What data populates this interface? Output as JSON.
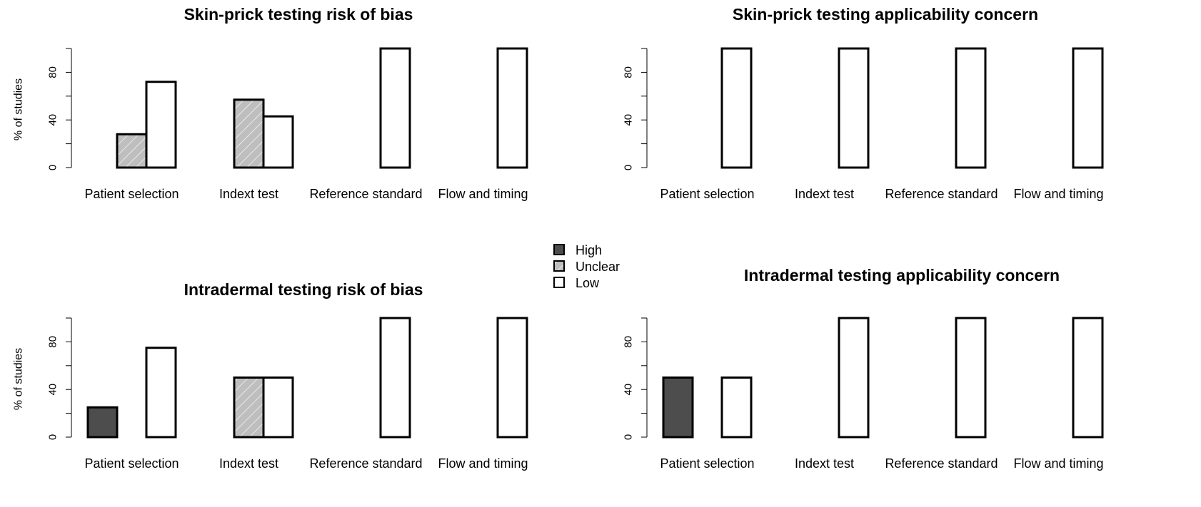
{
  "legend": {
    "entries": [
      {
        "key": "high",
        "label": "High",
        "color": "#4d4d4d",
        "pattern": "solid"
      },
      {
        "key": "unclear",
        "label": "Unclear",
        "color": "#bebebe",
        "pattern": "hatched"
      },
      {
        "key": "low",
        "label": "Low",
        "color": "#ffffff",
        "pattern": "empty"
      }
    ]
  },
  "chart_data": [
    {
      "type": "bar",
      "title": "Skin-prick testing risk of bias",
      "ylabel": "% of studies",
      "ylim": [
        0,
        100
      ],
      "yticks": [
        "0",
        "40",
        "80"
      ],
      "categories": [
        "Patient selection",
        "Indext test",
        "Reference standard",
        "Flow and timing"
      ],
      "series": [
        {
          "name": "High",
          "values": [
            0,
            0,
            0,
            0
          ]
        },
        {
          "name": "Unclear",
          "values": [
            28,
            57,
            0,
            0
          ]
        },
        {
          "name": "Low",
          "values": [
            72,
            43,
            100,
            100
          ]
        }
      ]
    },
    {
      "type": "bar",
      "title": "Skin-prick testing applicability concern",
      "ylabel": "",
      "ylim": [
        0,
        100
      ],
      "yticks": [
        "0",
        "40",
        "80"
      ],
      "categories": [
        "Patient selection",
        "Indext test",
        "Reference standard",
        "Flow and timing"
      ],
      "series": [
        {
          "name": "High",
          "values": [
            0,
            0,
            0,
            0
          ]
        },
        {
          "name": "Unclear",
          "values": [
            0,
            0,
            0,
            0
          ]
        },
        {
          "name": "Low",
          "values": [
            100,
            100,
            100,
            100
          ]
        }
      ]
    },
    {
      "type": "bar",
      "title": "Intradermal testing risk of bias",
      "ylabel": "% of studies",
      "ylim": [
        0,
        100
      ],
      "yticks": [
        "0",
        "40",
        "80"
      ],
      "categories": [
        "Patient selection",
        "Indext test",
        "Reference standard",
        "Flow and timing"
      ],
      "series": [
        {
          "name": "High",
          "values": [
            25,
            0,
            0,
            0
          ]
        },
        {
          "name": "Unclear",
          "values": [
            0,
            50,
            0,
            0
          ]
        },
        {
          "name": "Low",
          "values": [
            75,
            50,
            100,
            100
          ]
        }
      ]
    },
    {
      "type": "bar",
      "title": "Intradermal testing applicability concern",
      "ylabel": "",
      "ylim": [
        0,
        100
      ],
      "yticks": [
        "0",
        "40",
        "80"
      ],
      "categories": [
        "Patient selection",
        "Indext test",
        "Reference standard",
        "Flow and timing"
      ],
      "series": [
        {
          "name": "High",
          "values": [
            50,
            0,
            0,
            0
          ]
        },
        {
          "name": "Unclear",
          "values": [
            0,
            0,
            0,
            0
          ]
        },
        {
          "name": "Low",
          "values": [
            50,
            100,
            100,
            100
          ]
        }
      ]
    }
  ]
}
